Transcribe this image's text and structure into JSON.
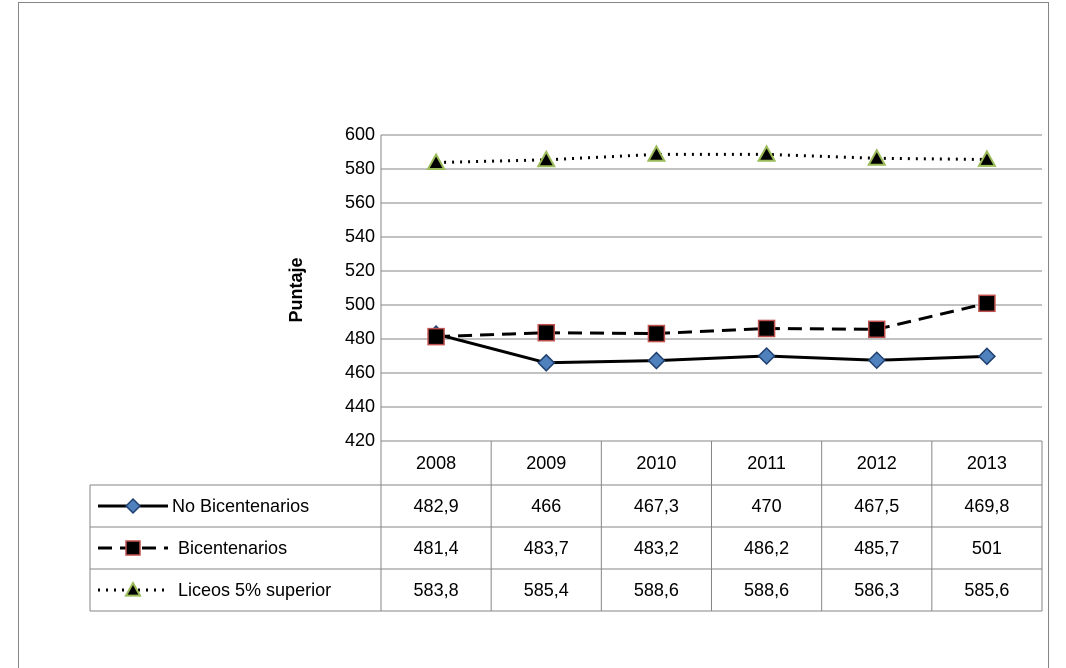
{
  "chart_data": {
    "type": "line",
    "y_label": "Puntaje",
    "categories": [
      "2008",
      "2009",
      "2010",
      "2011",
      "2012",
      "2013"
    ],
    "ylim": [
      420,
      600
    ],
    "yticks": [
      420,
      440,
      460,
      480,
      500,
      520,
      540,
      560,
      580,
      600
    ],
    "grid": true,
    "series": [
      {
        "name": "No Bicentenarios",
        "color": "#000000",
        "dash": "solid",
        "marker": "diamond",
        "marker_fill": "#4f81bd",
        "marker_stroke": "#1f3f6f",
        "values": [
          482.9,
          466,
          467.3,
          470,
          467.5,
          469.8
        ],
        "value_labels": [
          "482,9",
          "466",
          "467,3",
          "470",
          "467,5",
          "469,8"
        ]
      },
      {
        "name": "Bicentenarios",
        "color": "#000000",
        "dash": "dashed",
        "marker": "square",
        "marker_fill": "#000000",
        "marker_stroke": "#c0504d",
        "values": [
          481.4,
          483.7,
          483.2,
          486.2,
          485.7,
          501
        ],
        "value_labels": [
          "481,4",
          "483,7",
          "483,2",
          "486,2",
          "485,7",
          "501"
        ]
      },
      {
        "name": "Liceos 5% superior",
        "color": "#000000",
        "dash": "dotted",
        "marker": "triangle",
        "marker_fill": "#000000",
        "marker_stroke": "#9bbb59",
        "values": [
          583.8,
          585.4,
          588.6,
          588.6,
          586.3,
          585.6
        ],
        "value_labels": [
          "583,8",
          "585,4",
          "588,6",
          "588,6",
          "586,3",
          "585,6"
        ]
      }
    ]
  }
}
